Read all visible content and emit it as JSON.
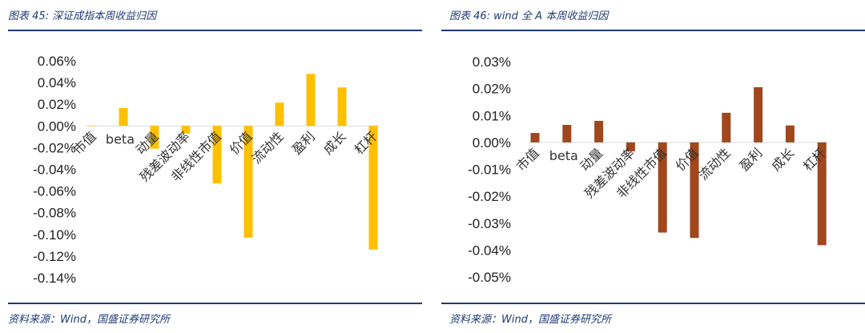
{
  "charts": [
    {
      "title": "图表 45: 深证成指本周收益归因",
      "source": "资料来源：Wind，国盛证券研究所",
      "color": "#ffc000",
      "chart_data": {
        "type": "bar",
        "categories": [
          "市值",
          "beta",
          "动量",
          "残差波动率",
          "非线性市值",
          "价值",
          "流动性",
          "盈利",
          "成长",
          "杠杆"
        ],
        "values": [
          0.0,
          0.0165,
          -0.021,
          -0.007,
          -0.053,
          -0.103,
          0.0215,
          0.048,
          0.0355,
          -0.114
        ],
        "ylim": [
          -0.14,
          0.06
        ],
        "yticks": [
          0.06,
          0.04,
          0.02,
          0.0,
          -0.02,
          -0.04,
          -0.06,
          -0.08,
          -0.1,
          -0.12,
          -0.14
        ],
        "ytick_labels": [
          "0.06%",
          "0.04%",
          "0.02%",
          "0.00%",
          "-0.02%",
          "-0.04%",
          "-0.06%",
          "-0.08%",
          "-0.10%",
          "-0.12%",
          "-0.14%"
        ],
        "unit": "%",
        "grid": false,
        "legend": "none"
      }
    },
    {
      "title": "图表 46: wind 全 A 本周收益归因",
      "source": "资料来源：Wind，国盛证券研究所",
      "color": "#a0471e",
      "chart_data": {
        "type": "bar",
        "categories": [
          "市值",
          "beta",
          "动量",
          "残差波动率",
          "非线性市值",
          "价值",
          "流动性",
          "盈利",
          "成长",
          "杠杆"
        ],
        "values": [
          0.0035,
          0.0065,
          0.008,
          -0.0033,
          -0.0335,
          -0.0355,
          0.011,
          0.0205,
          0.0063,
          -0.0382
        ],
        "ylim": [
          -0.05,
          0.03
        ],
        "yticks": [
          0.03,
          0.02,
          0.01,
          0.0,
          -0.01,
          -0.02,
          -0.03,
          -0.04,
          -0.05
        ],
        "ytick_labels": [
          "0.03%",
          "0.02%",
          "0.01%",
          "0.00%",
          "-0.01%",
          "-0.02%",
          "-0.03%",
          "-0.04%",
          "-0.05%"
        ],
        "unit": "%",
        "grid": false,
        "legend": "none"
      }
    }
  ]
}
